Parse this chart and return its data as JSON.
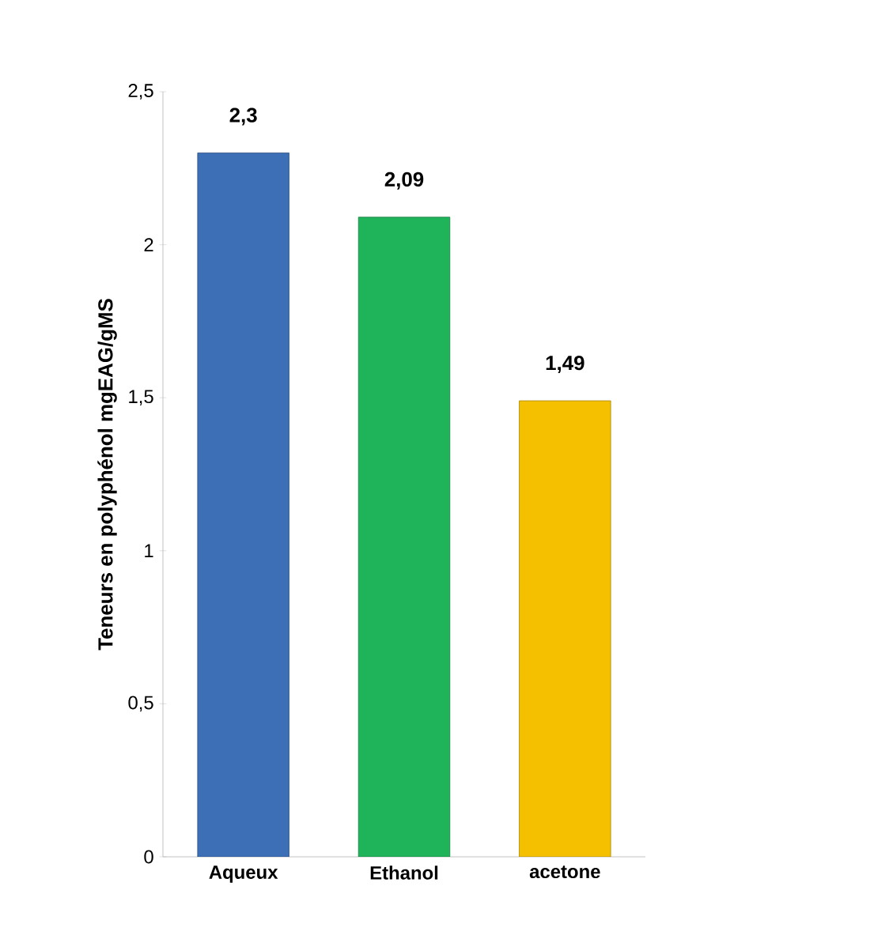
{
  "chart_data": {
    "type": "bar",
    "ylabel": "Teneurs en polyphénol mgEAG/gMS",
    "categories": [
      "Aqueux",
      "Ethanol",
      "acetone"
    ],
    "values": [
      2.3,
      2.09,
      1.49
    ],
    "colors": [
      "#3d6fb6",
      "#1fb35a",
      "#f5c000"
    ],
    "value_labels": [
      "2,3",
      "2,09",
      "1,49"
    ],
    "ylim": [
      0,
      2.5
    ],
    "yticks": [
      {
        "value": 0,
        "label": "0"
      },
      {
        "value": 0.5,
        "label": "0,5"
      },
      {
        "value": 1,
        "label": "1"
      },
      {
        "value": 1.5,
        "label": "1,5"
      },
      {
        "value": 2,
        "label": "2"
      },
      {
        "value": 2.5,
        "label": "2,5"
      }
    ],
    "grid": false
  }
}
